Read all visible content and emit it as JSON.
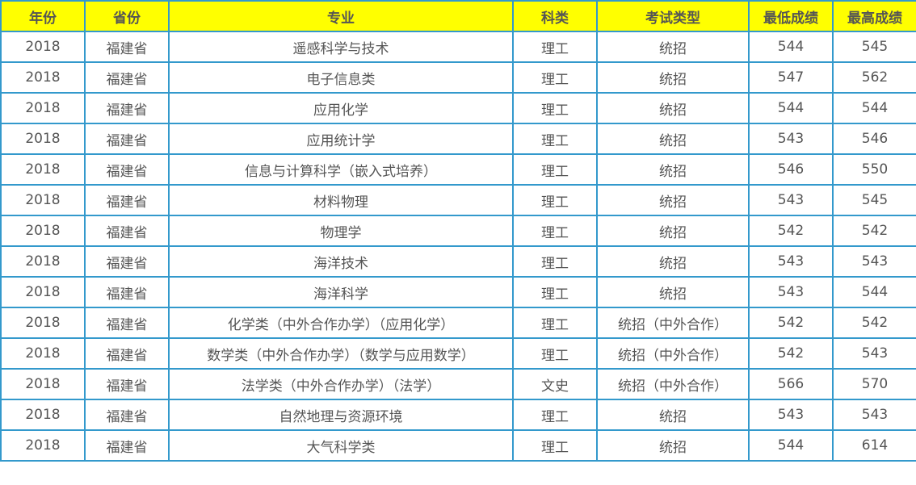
{
  "table": {
    "headers": [
      "年份",
      "省份",
      "专业",
      "科类",
      "考试类型",
      "最低成绩",
      "最高成绩"
    ],
    "rows": [
      [
        "2018",
        "福建省",
        "遥感科学与技术",
        "理工",
        "统招",
        "544",
        "545"
      ],
      [
        "2018",
        "福建省",
        "电子信息类",
        "理工",
        "统招",
        "547",
        "562"
      ],
      [
        "2018",
        "福建省",
        "应用化学",
        "理工",
        "统招",
        "544",
        "544"
      ],
      [
        "2018",
        "福建省",
        "应用统计学",
        "理工",
        "统招",
        "543",
        "546"
      ],
      [
        "2018",
        "福建省",
        "信息与计算科学（嵌入式培养）",
        "理工",
        "统招",
        "546",
        "550"
      ],
      [
        "2018",
        "福建省",
        "材料物理",
        "理工",
        "统招",
        "543",
        "545"
      ],
      [
        "2018",
        "福建省",
        "物理学",
        "理工",
        "统招",
        "542",
        "542"
      ],
      [
        "2018",
        "福建省",
        "海洋技术",
        "理工",
        "统招",
        "543",
        "543"
      ],
      [
        "2018",
        "福建省",
        "海洋科学",
        "理工",
        "统招",
        "543",
        "544"
      ],
      [
        "2018",
        "福建省",
        "化学类（中外合作办学）（应用化学）",
        "理工",
        "统招（中外合作）",
        "542",
        "542"
      ],
      [
        "2018",
        "福建省",
        "数学类（中外合作办学）（数学与应用数学）",
        "理工",
        "统招（中外合作）",
        "542",
        "543"
      ],
      [
        "2018",
        "福建省",
        "法学类（中外合作办学）（法学）",
        "文史",
        "统招（中外合作）",
        "566",
        "570"
      ],
      [
        "2018",
        "福建省",
        "自然地理与资源环境",
        "理工",
        "统招",
        "543",
        "543"
      ],
      [
        "2018",
        "福建省",
        "大气科学类",
        "理工",
        "统招",
        "544",
        "614"
      ]
    ]
  },
  "colors": {
    "header_bg": "#ffff00",
    "border": "#3399cc",
    "text": "#555555"
  }
}
